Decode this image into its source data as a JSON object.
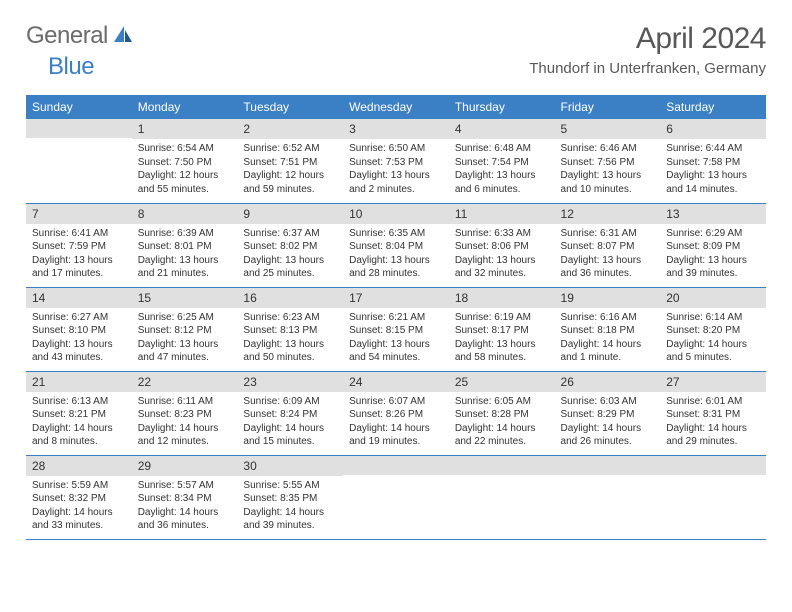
{
  "logo": {
    "text1": "General",
    "text2": "Blue"
  },
  "title": "April 2024",
  "location": "Thundorf in Unterfranken, Germany",
  "colors": {
    "header_bg": "#3b7fc4",
    "header_fg": "#ffffff",
    "daynum_bg": "#e0e0e0",
    "row_border": "#3b7fc4",
    "title_color": "#585858",
    "logo_gray": "#6b6b6b",
    "logo_blue": "#3b7fc4"
  },
  "daysOfWeek": [
    "Sunday",
    "Monday",
    "Tuesday",
    "Wednesday",
    "Thursday",
    "Friday",
    "Saturday"
  ],
  "weeks": [
    [
      {
        "n": "",
        "sunrise": "",
        "sunset": "",
        "daylight": ""
      },
      {
        "n": "1",
        "sunrise": "Sunrise: 6:54 AM",
        "sunset": "Sunset: 7:50 PM",
        "daylight": "Daylight: 12 hours and 55 minutes."
      },
      {
        "n": "2",
        "sunrise": "Sunrise: 6:52 AM",
        "sunset": "Sunset: 7:51 PM",
        "daylight": "Daylight: 12 hours and 59 minutes."
      },
      {
        "n": "3",
        "sunrise": "Sunrise: 6:50 AM",
        "sunset": "Sunset: 7:53 PM",
        "daylight": "Daylight: 13 hours and 2 minutes."
      },
      {
        "n": "4",
        "sunrise": "Sunrise: 6:48 AM",
        "sunset": "Sunset: 7:54 PM",
        "daylight": "Daylight: 13 hours and 6 minutes."
      },
      {
        "n": "5",
        "sunrise": "Sunrise: 6:46 AM",
        "sunset": "Sunset: 7:56 PM",
        "daylight": "Daylight: 13 hours and 10 minutes."
      },
      {
        "n": "6",
        "sunrise": "Sunrise: 6:44 AM",
        "sunset": "Sunset: 7:58 PM",
        "daylight": "Daylight: 13 hours and 14 minutes."
      }
    ],
    [
      {
        "n": "7",
        "sunrise": "Sunrise: 6:41 AM",
        "sunset": "Sunset: 7:59 PM",
        "daylight": "Daylight: 13 hours and 17 minutes."
      },
      {
        "n": "8",
        "sunrise": "Sunrise: 6:39 AM",
        "sunset": "Sunset: 8:01 PM",
        "daylight": "Daylight: 13 hours and 21 minutes."
      },
      {
        "n": "9",
        "sunrise": "Sunrise: 6:37 AM",
        "sunset": "Sunset: 8:02 PM",
        "daylight": "Daylight: 13 hours and 25 minutes."
      },
      {
        "n": "10",
        "sunrise": "Sunrise: 6:35 AM",
        "sunset": "Sunset: 8:04 PM",
        "daylight": "Daylight: 13 hours and 28 minutes."
      },
      {
        "n": "11",
        "sunrise": "Sunrise: 6:33 AM",
        "sunset": "Sunset: 8:06 PM",
        "daylight": "Daylight: 13 hours and 32 minutes."
      },
      {
        "n": "12",
        "sunrise": "Sunrise: 6:31 AM",
        "sunset": "Sunset: 8:07 PM",
        "daylight": "Daylight: 13 hours and 36 minutes."
      },
      {
        "n": "13",
        "sunrise": "Sunrise: 6:29 AM",
        "sunset": "Sunset: 8:09 PM",
        "daylight": "Daylight: 13 hours and 39 minutes."
      }
    ],
    [
      {
        "n": "14",
        "sunrise": "Sunrise: 6:27 AM",
        "sunset": "Sunset: 8:10 PM",
        "daylight": "Daylight: 13 hours and 43 minutes."
      },
      {
        "n": "15",
        "sunrise": "Sunrise: 6:25 AM",
        "sunset": "Sunset: 8:12 PM",
        "daylight": "Daylight: 13 hours and 47 minutes."
      },
      {
        "n": "16",
        "sunrise": "Sunrise: 6:23 AM",
        "sunset": "Sunset: 8:13 PM",
        "daylight": "Daylight: 13 hours and 50 minutes."
      },
      {
        "n": "17",
        "sunrise": "Sunrise: 6:21 AM",
        "sunset": "Sunset: 8:15 PM",
        "daylight": "Daylight: 13 hours and 54 minutes."
      },
      {
        "n": "18",
        "sunrise": "Sunrise: 6:19 AM",
        "sunset": "Sunset: 8:17 PM",
        "daylight": "Daylight: 13 hours and 58 minutes."
      },
      {
        "n": "19",
        "sunrise": "Sunrise: 6:16 AM",
        "sunset": "Sunset: 8:18 PM",
        "daylight": "Daylight: 14 hours and 1 minute."
      },
      {
        "n": "20",
        "sunrise": "Sunrise: 6:14 AM",
        "sunset": "Sunset: 8:20 PM",
        "daylight": "Daylight: 14 hours and 5 minutes."
      }
    ],
    [
      {
        "n": "21",
        "sunrise": "Sunrise: 6:13 AM",
        "sunset": "Sunset: 8:21 PM",
        "daylight": "Daylight: 14 hours and 8 minutes."
      },
      {
        "n": "22",
        "sunrise": "Sunrise: 6:11 AM",
        "sunset": "Sunset: 8:23 PM",
        "daylight": "Daylight: 14 hours and 12 minutes."
      },
      {
        "n": "23",
        "sunrise": "Sunrise: 6:09 AM",
        "sunset": "Sunset: 8:24 PM",
        "daylight": "Daylight: 14 hours and 15 minutes."
      },
      {
        "n": "24",
        "sunrise": "Sunrise: 6:07 AM",
        "sunset": "Sunset: 8:26 PM",
        "daylight": "Daylight: 14 hours and 19 minutes."
      },
      {
        "n": "25",
        "sunrise": "Sunrise: 6:05 AM",
        "sunset": "Sunset: 8:28 PM",
        "daylight": "Daylight: 14 hours and 22 minutes."
      },
      {
        "n": "26",
        "sunrise": "Sunrise: 6:03 AM",
        "sunset": "Sunset: 8:29 PM",
        "daylight": "Daylight: 14 hours and 26 minutes."
      },
      {
        "n": "27",
        "sunrise": "Sunrise: 6:01 AM",
        "sunset": "Sunset: 8:31 PM",
        "daylight": "Daylight: 14 hours and 29 minutes."
      }
    ],
    [
      {
        "n": "28",
        "sunrise": "Sunrise: 5:59 AM",
        "sunset": "Sunset: 8:32 PM",
        "daylight": "Daylight: 14 hours and 33 minutes."
      },
      {
        "n": "29",
        "sunrise": "Sunrise: 5:57 AM",
        "sunset": "Sunset: 8:34 PM",
        "daylight": "Daylight: 14 hours and 36 minutes."
      },
      {
        "n": "30",
        "sunrise": "Sunrise: 5:55 AM",
        "sunset": "Sunset: 8:35 PM",
        "daylight": "Daylight: 14 hours and 39 minutes."
      },
      {
        "n": "",
        "sunrise": "",
        "sunset": "",
        "daylight": ""
      },
      {
        "n": "",
        "sunrise": "",
        "sunset": "",
        "daylight": ""
      },
      {
        "n": "",
        "sunrise": "",
        "sunset": "",
        "daylight": ""
      },
      {
        "n": "",
        "sunrise": "",
        "sunset": "",
        "daylight": ""
      }
    ]
  ]
}
